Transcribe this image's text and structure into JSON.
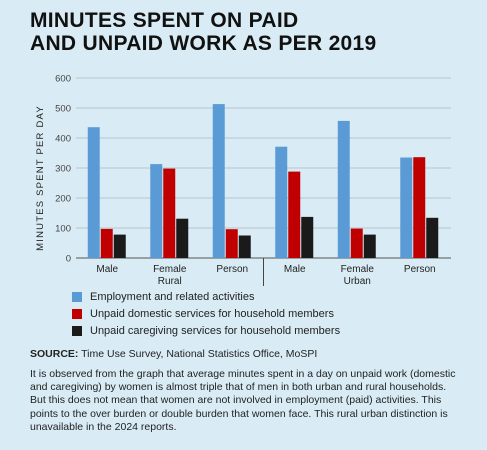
{
  "title_lines": [
    "MINUTES SPENT ON PAID",
    "AND UNPAID WORK AS PER 2019"
  ],
  "colors": {
    "employment": "#5b9bd5",
    "domestic": "#c00000",
    "caregiving": "#1a1a1a",
    "background": "#d9ecf5",
    "grid": "#aeb6bb"
  },
  "chart_data": {
    "type": "bar",
    "title": "MINUTES SPENT ON PAID AND UNPAID WORK AS PER 2019",
    "ylabel": "MINUTES SPENT PER DAY",
    "xlabel": "",
    "ylim": [
      0,
      600
    ],
    "yticks": [
      "0",
      "100",
      "200",
      "300",
      "400",
      "500",
      "600"
    ],
    "groups": [
      "Rural",
      "Urban"
    ],
    "categories": [
      [
        "Male"
      ],
      [
        "Female",
        "Rural"
      ],
      [
        "Person"
      ],
      [
        "Male"
      ],
      [
        "Female",
        "Urban"
      ],
      [
        "Person"
      ]
    ],
    "series": [
      {
        "name": "Employment and related activities",
        "color": "#5b9bd5",
        "values": [
          436,
          313,
          513,
          371,
          457,
          335
        ]
      },
      {
        "name": "Unpaid domestic services for household members",
        "color": "#c00000",
        "values": [
          97,
          298,
          96,
          288,
          98,
          336
        ]
      },
      {
        "name": "Unpaid caregiving services for household members",
        "color": "#1a1a1a",
        "values": [
          78,
          131,
          75,
          137,
          78,
          134
        ]
      }
    ],
    "grid": true,
    "legend_position": "bottom-left"
  },
  "legend": [
    {
      "label": "Employment and related activities",
      "color": "#5b9bd5"
    },
    {
      "label": "Unpaid domestic services for household members",
      "color": "#c00000"
    },
    {
      "label": "Unpaid caregiving services for household members",
      "color": "#1a1a1a"
    }
  ],
  "source": {
    "label": "SOURCE:",
    "text": " Time Use Survey, National Statistics Office, MoSPI"
  },
  "paragraph": "It is observed from the graph that average minutes spent in a day on unpaid work (domestic and caregiving) by women is almost triple that of men in both urban and rural households. But this does not mean that women are not involved in employment (paid) activities. This points to the over burden or double burden that women face. This rural urban distinction is unavailable in the 2024 reports."
}
